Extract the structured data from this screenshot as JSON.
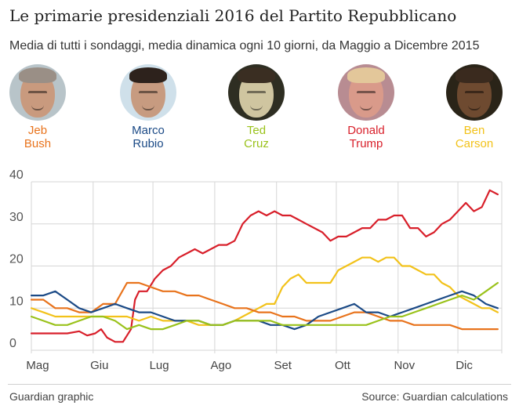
{
  "title": "Le primarie presidenziali 2016 del Partito Repubblicano",
  "subtitle": "Media di tutti i sondaggi, media dinamica ogni 10 giorni, da Maggio a Dicembre 2015",
  "candidates": [
    {
      "first": "Jeb",
      "last": "Bush",
      "color": "#e8731c",
      "photo_bg": "#b8c4c9",
      "face": "#c99a7e",
      "hair": "#9a8f86"
    },
    {
      "first": "Marco",
      "last": "Rubio",
      "color": "#1b4a86",
      "photo_bg": "#cfe0ea",
      "face": "#c79b80",
      "hair": "#2d221c"
    },
    {
      "first": "Ted",
      "last": "Cruz",
      "color": "#9ac21b",
      "photo_bg": "#2e2e22",
      "face": "#cfc5a0",
      "hair": "#3a2e22"
    },
    {
      "first": "Donald",
      "last": "Trump",
      "color": "#d81f2a",
      "photo_bg": "#b88c92",
      "face": "#d99a8a",
      "hair": "#e3c79a"
    },
    {
      "first": "Ben",
      "last": "Carson",
      "color": "#f2c21a",
      "photo_bg": "#2a2418",
      "face": "#6e4a30",
      "hair": "#3a2a1e"
    }
  ],
  "footer": {
    "credit": "Guardian graphic",
    "source": "Source: Guardian calculations"
  },
  "chart_data": {
    "type": "line",
    "xlabel": "",
    "ylabel": "",
    "ylim": [
      0,
      40
    ],
    "yticks": [
      0,
      10,
      20,
      30,
      40
    ],
    "xlim": [
      0,
      236
    ],
    "x_tick_labels": [
      "Mag",
      "Giu",
      "Lug",
      "Ago",
      "Set",
      "Ott",
      "Nov",
      "Dic"
    ],
    "x_tick_positions": [
      0,
      31,
      61,
      92,
      123,
      153,
      184,
      214
    ],
    "grid": true,
    "series": [
      {
        "name": "Donald Trump",
        "color": "#d81f2a",
        "x": [
          0,
          6,
          12,
          18,
          24,
          28,
          32,
          35,
          38,
          42,
          46,
          50,
          52,
          54,
          58,
          62,
          66,
          70,
          74,
          78,
          82,
          86,
          90,
          94,
          98,
          102,
          106,
          110,
          114,
          118,
          122,
          126,
          130,
          134,
          138,
          142,
          146,
          150,
          154,
          158,
          162,
          166,
          170,
          174,
          178,
          182,
          186,
          190,
          194,
          198,
          202,
          206,
          210,
          214,
          218,
          222,
          226,
          230,
          234
        ],
        "y": [
          4,
          4,
          4,
          4,
          4.5,
          3.5,
          4,
          5,
          3,
          2,
          2,
          5,
          12,
          14,
          14,
          17,
          19,
          20,
          22,
          23,
          24,
          23,
          24,
          25,
          25,
          26,
          30,
          32,
          33,
          32,
          33,
          32,
          32,
          31,
          30,
          29,
          28,
          26,
          27,
          27,
          28,
          29,
          29,
          31,
          31,
          32,
          32,
          29,
          29,
          27,
          28,
          30,
          31,
          33,
          35,
          33,
          34,
          38,
          37
        ]
      },
      {
        "name": "Ben Carson",
        "color": "#f2c21a",
        "x": [
          0,
          6,
          12,
          18,
          24,
          30,
          36,
          42,
          48,
          54,
          60,
          66,
          72,
          78,
          84,
          90,
          96,
          102,
          106,
          110,
          114,
          118,
          122,
          126,
          130,
          134,
          138,
          142,
          146,
          150,
          154,
          158,
          162,
          166,
          170,
          174,
          178,
          182,
          186,
          190,
          194,
          198,
          202,
          206,
          210,
          214,
          218,
          222,
          226,
          230,
          234
        ],
        "y": [
          10,
          9,
          8,
          8,
          8,
          8,
          8,
          8,
          8,
          7,
          8,
          7,
          7,
          7,
          6,
          6,
          6,
          7,
          8,
          9,
          10,
          11,
          11,
          15,
          17,
          18,
          16,
          16,
          16,
          16,
          19,
          20,
          21,
          22,
          22,
          21,
          22,
          22,
          20,
          20,
          19,
          18,
          18,
          16,
          15,
          13,
          12,
          11,
          10,
          10,
          9
        ]
      },
      {
        "name": "Jeb Bush",
        "color": "#e8731c",
        "x": [
          0,
          6,
          12,
          18,
          24,
          30,
          36,
          42,
          48,
          54,
          60,
          66,
          72,
          78,
          84,
          90,
          96,
          102,
          108,
          114,
          120,
          126,
          132,
          138,
          144,
          150,
          156,
          162,
          168,
          174,
          180,
          186,
          192,
          198,
          204,
          210,
          216,
          222,
          228,
          234
        ],
        "y": [
          12,
          12,
          10,
          10,
          9,
          9,
          11,
          11,
          16,
          16,
          15,
          14,
          14,
          13,
          13,
          12,
          11,
          10,
          10,
          9,
          9,
          8,
          8,
          7,
          7,
          7,
          8,
          9,
          9,
          8,
          7,
          7,
          6,
          6,
          6,
          6,
          5,
          5,
          5,
          5
        ]
      },
      {
        "name": "Marco Rubio",
        "color": "#1b4a86",
        "x": [
          0,
          6,
          12,
          18,
          24,
          30,
          36,
          42,
          48,
          54,
          60,
          66,
          72,
          78,
          84,
          90,
          96,
          102,
          108,
          114,
          120,
          126,
          132,
          138,
          144,
          150,
          156,
          162,
          168,
          174,
          180,
          186,
          192,
          198,
          204,
          210,
          216,
          222,
          228,
          234
        ],
        "y": [
          13,
          13,
          14,
          12,
          10,
          9,
          10,
          11,
          10,
          9,
          9,
          8,
          7,
          7,
          7,
          6,
          6,
          7,
          7,
          7,
          6,
          6,
          5,
          6,
          8,
          9,
          10,
          11,
          9,
          9,
          8,
          9,
          10,
          11,
          12,
          13,
          14,
          13,
          11,
          10
        ]
      },
      {
        "name": "Ted Cruz",
        "color": "#9ac21b",
        "x": [
          0,
          6,
          12,
          18,
          24,
          30,
          36,
          42,
          48,
          54,
          60,
          66,
          72,
          78,
          84,
          90,
          96,
          102,
          108,
          114,
          120,
          126,
          132,
          138,
          144,
          150,
          156,
          162,
          168,
          174,
          180,
          186,
          192,
          198,
          204,
          210,
          216,
          222,
          228,
          234
        ],
        "y": [
          8,
          7,
          6,
          6,
          7,
          8,
          8,
          7,
          5,
          6,
          5,
          5,
          6,
          7,
          7,
          6,
          6,
          7,
          7,
          7,
          7,
          6,
          6,
          6,
          6,
          6,
          6,
          6,
          6,
          7,
          8,
          8,
          9,
          10,
          11,
          12,
          13,
          12,
          14,
          16
        ]
      }
    ]
  }
}
